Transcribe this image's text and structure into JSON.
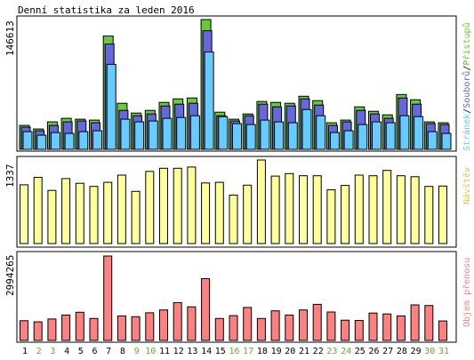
{
  "chart_data": {
    "type": "bar",
    "title": "Denní statistika za leden 2016",
    "categories": [
      "1",
      "2",
      "3",
      "4",
      "5",
      "6",
      "7",
      "8",
      "9",
      "10",
      "11",
      "12",
      "13",
      "14",
      "15",
      "16",
      "17",
      "18",
      "19",
      "20",
      "21",
      "22",
      "23",
      "24",
      "25",
      "26",
      "27",
      "28",
      "29",
      "30",
      "31"
    ],
    "weekend_days": [
      "2",
      "3",
      "9",
      "10",
      "16",
      "17",
      "23",
      "24",
      "30",
      "31"
    ],
    "panels": [
      {
        "key": "traffic",
        "ymax_label": "146613",
        "ylim": [
          0,
          146613
        ],
        "legend": [
          "Stránek",
          "Souborů",
          "Přístupů"
        ],
        "legend_separator": "/",
        "series": [
          {
            "name": "Přístupů",
            "color": "#66cc33",
            "values": [
              27000,
              23000,
              31000,
              35000,
              34000,
              33000,
              128000,
              52000,
              41000,
              44000,
              53000,
              57000,
              58000,
              146613,
              42000,
              34000,
              40000,
              54000,
              53000,
              52000,
              60000,
              55000,
              30000,
              33000,
              48000,
              43000,
              39000,
              62000,
              56000,
              31000,
              30000
            ]
          },
          {
            "name": "Souborů",
            "color": "#6666dd",
            "values": [
              25000,
              21000,
              27000,
              31000,
              32000,
              30000,
              119000,
              44000,
              38000,
              40000,
              49000,
              51000,
              52000,
              134000,
              38000,
              32000,
              38000,
              51000,
              48000,
              49000,
              57000,
              50000,
              27000,
              31000,
              44000,
              40000,
              35000,
              58000,
              51000,
              29000,
              28000
            ]
          },
          {
            "name": "Stránek",
            "color": "#66ccff",
            "values": [
              20000,
              16000,
              19000,
              18000,
              20000,
              21000,
              96000,
              34000,
              31000,
              32000,
              35000,
              36000,
              38000,
              110000,
              37000,
              29000,
              28000,
              33000,
              31000,
              30000,
              45000,
              38000,
              19000,
              21000,
              28000,
              31000,
              30000,
              38000,
              37000,
              20000,
              18000
            ]
          }
        ]
      },
      {
        "key": "visits",
        "ymax_label": "1337",
        "ylim": [
          0,
          1337
        ],
        "legend": [
          "Návštěv"
        ],
        "series": [
          {
            "name": "Návštěv",
            "color": "#ffff99",
            "values": [
              940,
              1060,
              850,
              1040,
              965,
              915,
              980,
              1095,
              835,
              1155,
              1205,
              1205,
              1225,
              970,
              980,
              775,
              935,
              1337,
              1080,
              1120,
              1085,
              1085,
              860,
              930,
              1095,
              1085,
              1170,
              1085,
              1070,
              915,
              920
            ]
          }
        ]
      },
      {
        "key": "bytes",
        "ymax_label": "2994265",
        "ylim": [
          0,
          2994265
        ],
        "legend": [
          "Objem přenosu"
        ],
        "series": [
          {
            "name": "Objem přenosu",
            "color": "#ff8080",
            "values": [
              700000,
              660000,
              760000,
              900000,
              1000000,
              780000,
              2994265,
              870000,
              840000,
              980000,
              1080000,
              1340000,
              1190000,
              2190000,
              780000,
              880000,
              1170000,
              780000,
              1050000,
              900000,
              1080000,
              1280000,
              1010000,
              720000,
              710000,
              970000,
              940000,
              870000,
              1260000,
              1240000,
              690000
            ]
          }
        ]
      }
    ]
  }
}
